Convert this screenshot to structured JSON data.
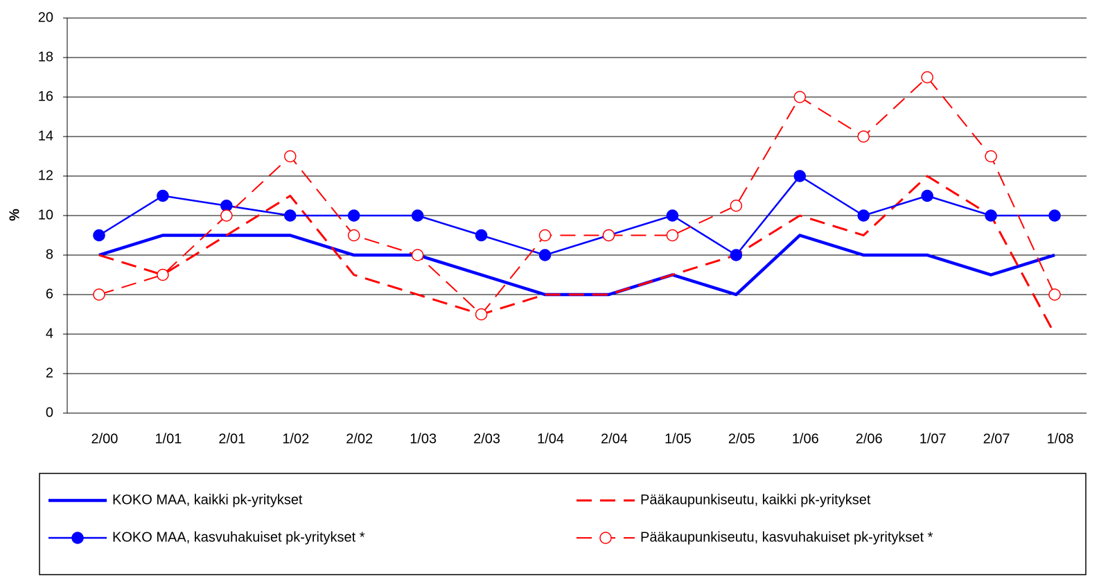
{
  "chart_data": {
    "type": "line",
    "y_label": "%",
    "categories": [
      "2/00",
      "1/01",
      "2/01",
      "1/02",
      "2/02",
      "1/03",
      "2/03",
      "1/04",
      "2/04",
      "1/05",
      "2/05",
      "1/06",
      "2/06",
      "1/07",
      "2/07",
      "1/08"
    ],
    "series": [
      {
        "name": "KOKO MAA, kaikki pk-yritykset",
        "color": "#0000ff",
        "values": [
          8,
          9,
          9,
          9,
          8,
          8,
          7,
          6,
          6,
          7,
          6,
          9,
          8,
          8,
          7,
          8
        ]
      },
      {
        "name": "Pääkaupunkiseutu, kaikki pk-yritykset",
        "color": "#ff0000",
        "values": [
          8,
          7,
          9,
          11,
          7,
          6,
          5,
          6,
          6,
          7,
          8,
          10,
          9,
          12,
          10,
          4
        ]
      },
      {
        "name": "KOKO MAA, kasvuhakuiset pk-yritykset *",
        "color": "#0000ff",
        "values": [
          9,
          11,
          10.5,
          10,
          10,
          10,
          9,
          8,
          9,
          10,
          8,
          12,
          10,
          11,
          10,
          10
        ]
      },
      {
        "name": "Pääkaupunkiseutu, kasvuhakuiset pk-yritykset *",
        "color": "#ff0000",
        "values": [
          6,
          7,
          10,
          13,
          9,
          8,
          5,
          9,
          9,
          9,
          10.5,
          16,
          14,
          17,
          13,
          6
        ]
      }
    ],
    "ylim": [
      0,
      20
    ],
    "yticks": [
      0,
      2,
      4,
      6,
      8,
      10,
      12,
      14,
      16,
      18,
      20
    ],
    "grid": true
  }
}
